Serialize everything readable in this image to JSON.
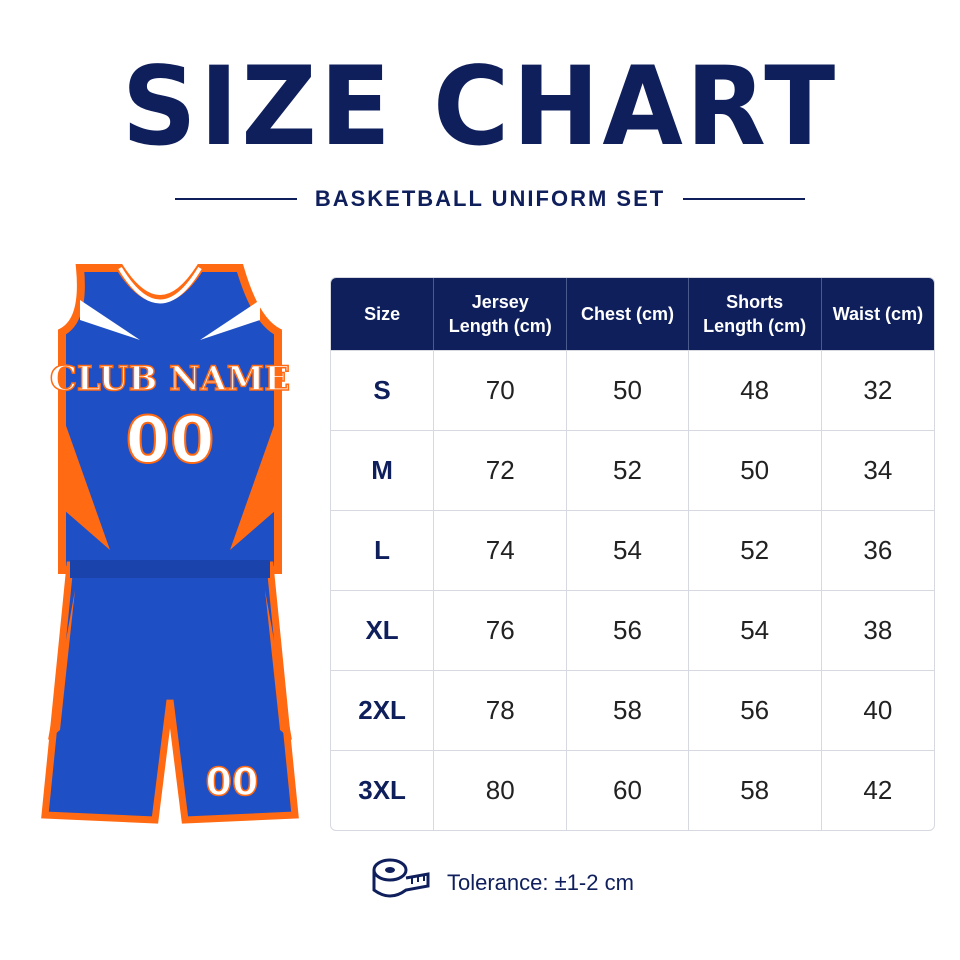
{
  "header": {
    "title": "SIZE CHART",
    "subtitle": "BASKETBALL UNIFORM SET"
  },
  "jersey": {
    "team": "CLUB NAME",
    "number": "00",
    "shorts_number": "00"
  },
  "table": {
    "headers": [
      "Size",
      "Jersey Length (cm)",
      "Chest (cm)",
      "Shorts Length (cm)",
      "Waist (cm)"
    ],
    "rows": [
      [
        "S",
        "70",
        "50",
        "48",
        "32"
      ],
      [
        "M",
        "72",
        "52",
        "50",
        "34"
      ],
      [
        "L",
        "74",
        "54",
        "52",
        "36"
      ],
      [
        "XL",
        "76",
        "56",
        "54",
        "38"
      ],
      [
        "2XL",
        "78",
        "58",
        "56",
        "40"
      ],
      [
        "3XL",
        "80",
        "60",
        "58",
        "42"
      ]
    ]
  },
  "footer": {
    "tolerance": "Tolerance: ±1-2 cm"
  }
}
